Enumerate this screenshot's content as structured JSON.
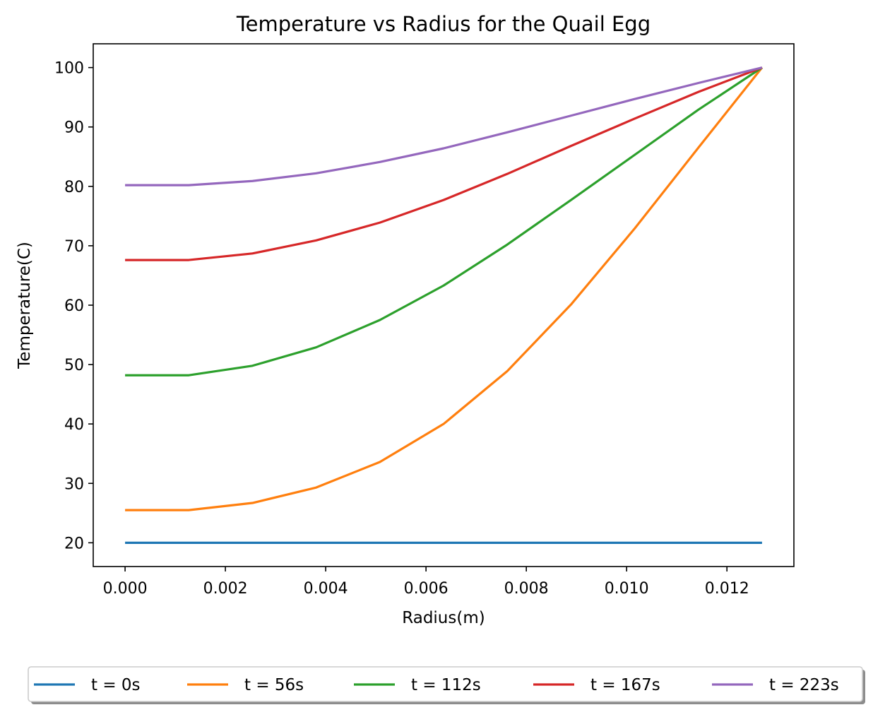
{
  "chart_data": {
    "type": "line",
    "title": "Temperature vs Radius for the Quail Egg",
    "xlabel": "Radius(m)",
    "ylabel": "Temperature(C)",
    "xlim": [
      -0.000635,
      0.013335
    ],
    "ylim": [
      16,
      104
    ],
    "xticks": [
      0.0,
      0.002,
      0.004,
      0.006,
      0.008,
      0.01,
      0.012
    ],
    "xtick_labels": [
      "0.000",
      "0.002",
      "0.004",
      "0.006",
      "0.008",
      "0.010",
      "0.012"
    ],
    "yticks": [
      20,
      30,
      40,
      50,
      60,
      70,
      80,
      90,
      100
    ],
    "ytick_labels": [
      "20",
      "30",
      "40",
      "50",
      "60",
      "70",
      "80",
      "90",
      "100"
    ],
    "grid": false,
    "legend_position": "bottom, below the axes",
    "x": [
      0.0,
      0.00127,
      0.00254,
      0.00381,
      0.00508,
      0.00635,
      0.00762,
      0.00889,
      0.01016,
      0.01143,
      0.0127
    ],
    "series": [
      {
        "name": "t = 0s",
        "color": "#1f77b4",
        "values": [
          20,
          20,
          20,
          20,
          20,
          20,
          20,
          20,
          20,
          20,
          20
        ]
      },
      {
        "name": "t = 56s",
        "color": "#ff7f0e",
        "values": [
          25.5,
          25.5,
          26.7,
          29.3,
          33.6,
          40.0,
          48.9,
          60.1,
          72.9,
          86.5,
          100
        ]
      },
      {
        "name": "t = 112s",
        "color": "#2ca02c",
        "values": [
          48.2,
          48.2,
          49.8,
          52.9,
          57.5,
          63.3,
          70.2,
          77.7,
          85.3,
          92.9,
          100
        ]
      },
      {
        "name": "t = 167s",
        "color": "#d62728",
        "values": [
          67.6,
          67.6,
          68.7,
          70.9,
          73.9,
          77.7,
          82.1,
          86.8,
          91.4,
          95.9,
          100
        ]
      },
      {
        "name": "t = 223s",
        "color": "#9467bd",
        "values": [
          80.2,
          80.2,
          80.9,
          82.2,
          84.1,
          86.4,
          89.1,
          91.9,
          94.7,
          97.4,
          100
        ]
      }
    ]
  }
}
